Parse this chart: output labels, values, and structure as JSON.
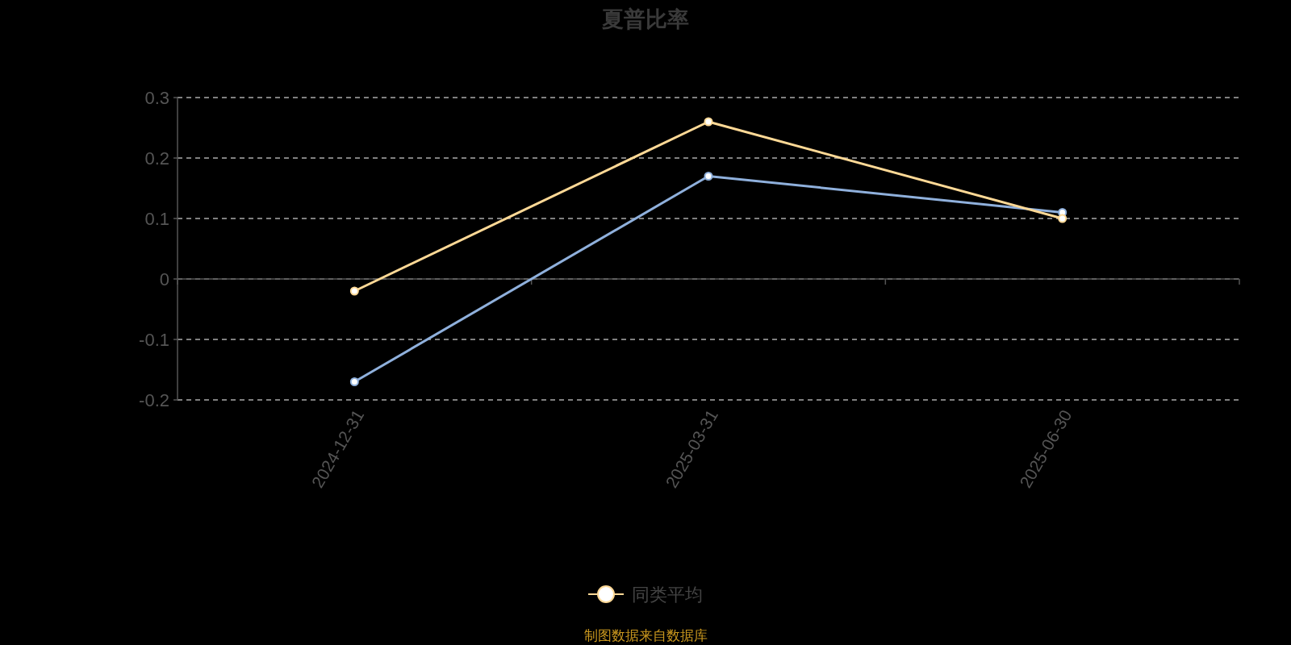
{
  "chart_data": {
    "type": "line",
    "title": "夏普比率",
    "categories": [
      "2024-12-31",
      "2025-03-31",
      "2025-06-30"
    ],
    "series": [
      {
        "color": "#8fb0dc",
        "values": [
          -0.17,
          0.17,
          0.11
        ]
      },
      {
        "name": "同类平均",
        "color": "#ffd996",
        "values": [
          -0.02,
          0.26,
          0.1
        ]
      }
    ],
    "ylim": [
      -0.2,
      0.3
    ],
    "yticks": [
      -0.2,
      -0.1,
      0,
      0.1,
      0.2,
      0.3
    ],
    "grid": "y",
    "legend": "bottom",
    "marker": "circle",
    "line_style": "solid",
    "annotations": [
      "制图数据来自数据库"
    ]
  }
}
